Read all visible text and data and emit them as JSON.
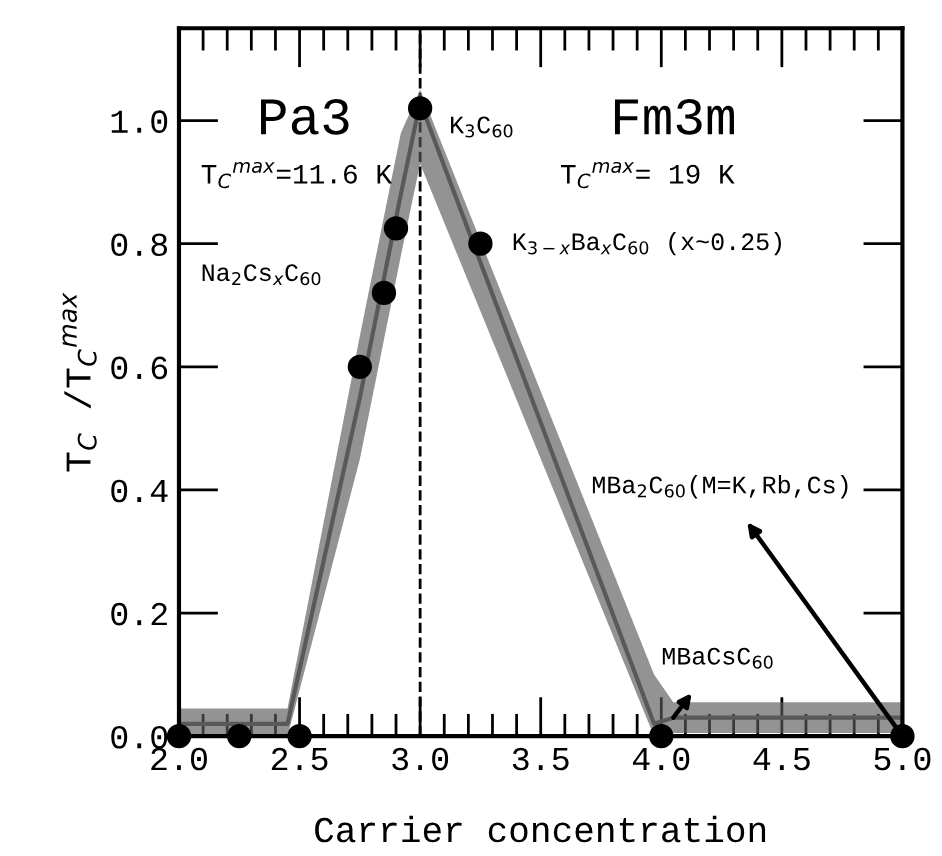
{
  "chart_data": {
    "type": "scatter",
    "xlabel": "Carrier concentration",
    "ylabel": "T$_{C}$ /T$_{C}$$^{max}$",
    "xlim": [
      2.0,
      5.0
    ],
    "xticks": [
      {
        "value": 2,
        "label": "2.0"
      },
      2.5,
      {
        "value": 3,
        "label": "3.0"
      },
      3.5,
      {
        "value": 4,
        "label": "4.0"
      },
      4.5,
      {
        "value": 5,
        "label": "5.0"
      }
    ],
    "ylim": [
      0,
      1.15
    ],
    "yticks": [
      {
        "value": 0,
        "label": "0.0"
      },
      0.2,
      0.4,
      0.6,
      0.8,
      {
        "value": 1,
        "label": "1.0"
      }
    ],
    "grid": false,
    "series": [
      {
        "type": "line",
        "color": "#595959",
        "line_style": "solid",
        "x": [
          2.0,
          2.45,
          2.75,
          2.92,
          3.0,
          3.97,
          4.05,
          5.0
        ],
        "values": [
          0.02,
          0.02,
          0.55,
          0.88,
          1.03,
          0.02,
          0.03,
          0.03
        ],
        "lower": [
          0,
          0,
          0.45,
          0.78,
          0.93,
          0,
          0.005,
          0.005
        ],
        "upper": [
          0.045,
          0.045,
          0.65,
          0.98,
          1.05,
          0.1,
          0.055,
          0.055
        ]
      },
      {
        "color": "#000000",
        "marker": "circle",
        "x": [
          2.0,
          2.25,
          2.5,
          2.75,
          2.85,
          2.9,
          3.0,
          3.25,
          4.0,
          5.0
        ],
        "values": [
          0,
          0,
          0,
          0.6,
          0.72,
          0.825,
          1.02,
          0.8,
          0,
          0
        ]
      }
    ],
    "ref_lines": [
      {
        "axis": "x",
        "value": 3.0,
        "color": "#000000",
        "line_style": "dashed"
      }
    ],
    "annotations": [
      "Pa3",
      "Fm3m",
      "T$_{C}$$^{max}$=11.6 K",
      "T$_{C}$$^{max}$= 19 K",
      {
        "text": "K$_{3}$C$_{60}$",
        "x": 3.0,
        "y": 1.02
      },
      {
        "text": "Na$_{2}$Cs$_{x}$C$_{60}$",
        "x": 2.85,
        "y": 0.72
      },
      "K$_{3−x}$Ba$_{x}$C$_{60}$ (x~0.25)",
      {
        "text": "MBa$_{2}$C$_{60}$(M=K,Rb,Cs)",
        "x": 5.0,
        "y": 0
      },
      {
        "text": "MBaCsC$_{60}$",
        "x": 4.05,
        "y": 0.03
      }
    ]
  }
}
